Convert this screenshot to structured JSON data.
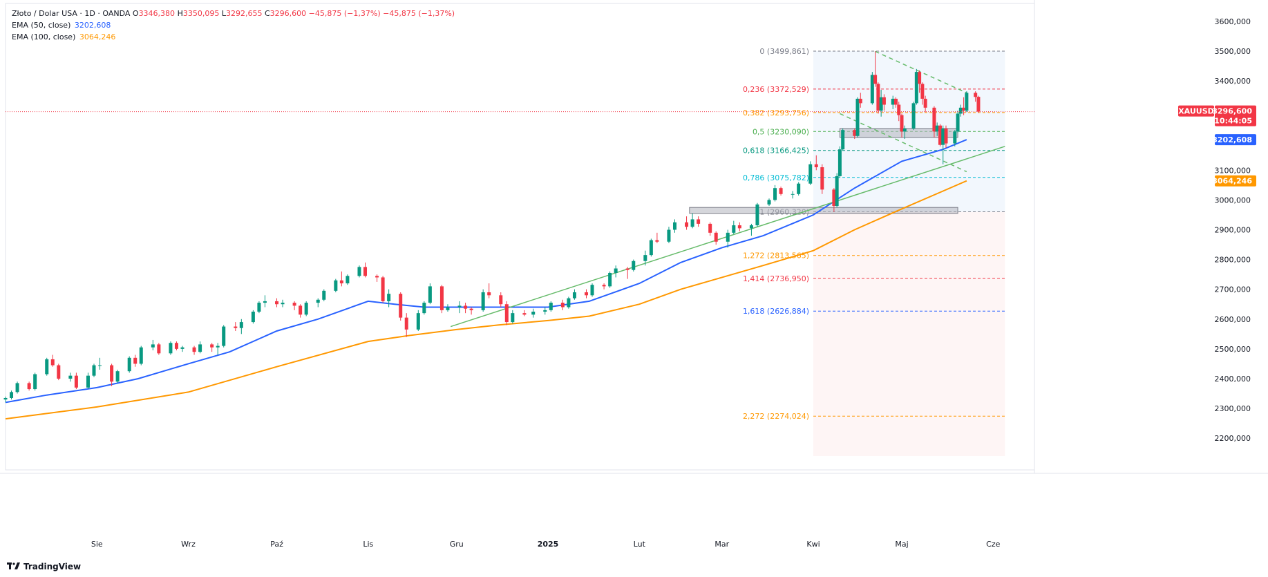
{
  "legend": {
    "symbol": "Złoto / Dolar USA · 1D · OANDA",
    "ohlc": {
      "O": "3346,380",
      "H": "3350,095",
      "L": "3292,655",
      "C": "3296,600"
    },
    "change": "−45,875 (−1,37%)",
    "change2": "−45,875 (−1,37%)",
    "ema50_label": "EMA (50, close)",
    "ema50_value": "3202,608",
    "ema100_label": "EMA (100, close)",
    "ema100_value": "3064,246"
  },
  "brand": "TradingView",
  "colors": {
    "up": "#089981",
    "down": "#f23645",
    "ema50": "#2962ff",
    "ema100": "#ff9800",
    "trend": "#66bb6a",
    "price_line": "#f23645"
  },
  "chart_data": {
    "type": "candlestick",
    "symbol": "XAUUSD",
    "y_axis": {
      "ticks": [
        "3600,000",
        "3500,000",
        "3400,000",
        "3300,000",
        "3200,000",
        "3100,000",
        "3000,000",
        "2900,000",
        "2800,000",
        "2700,000",
        "2600,000",
        "2500,000",
        "2400,000",
        "2300,000",
        "2200,000"
      ],
      "tick_values": [
        3600,
        3500,
        3400,
        3300,
        3200,
        3100,
        3000,
        2900,
        2800,
        2700,
        2600,
        2500,
        2400,
        2300,
        2200
      ],
      "range": [
        2140,
        3660
      ]
    },
    "x_axis": {
      "labels": [
        "Sie",
        "Wrz",
        "Paź",
        "Lis",
        "Gru",
        "2025",
        "Lut",
        "Mar",
        "Kwi",
        "Maj",
        "Cze"
      ],
      "label_dates": [
        "2024-08-01",
        "2024-09-01",
        "2024-10-01",
        "2024-11-01",
        "2024-12-01",
        "2025-01-01",
        "2025-02-01",
        "2025-03-01",
        "2025-04-01",
        "2025-05-01",
        "2025-06-01"
      ],
      "range": [
        "2024-07-01",
        "2025-06-15"
      ]
    },
    "price_badges": [
      {
        "label": "XAUUSD",
        "value": "3296,600",
        "extra": "10:44:05",
        "y": 3296.6,
        "color": "#f23645"
      },
      {
        "label": "",
        "value": "3202,608",
        "extra": "",
        "y": 3202.6,
        "color": "#2962ff"
      },
      {
        "label": "",
        "value": "3064,246",
        "extra": "",
        "y": 3064.2,
        "color": "#ff9800"
      }
    ],
    "fibonacci": {
      "date_start": "2025-04-01",
      "date_end": "2025-06-05",
      "levels": [
        {
          "ratio": "0",
          "label": "0 (3499,861)",
          "y": 3499.861,
          "color": "#787b86"
        },
        {
          "ratio": "0,236",
          "label": "0,236 (3372,529)",
          "y": 3372.529,
          "color": "#f23645"
        },
        {
          "ratio": "0,382",
          "label": "0,382 (3293,756)",
          "y": 3293.756,
          "color": "#ff9800"
        },
        {
          "ratio": "0,5",
          "label": "0,5 (3230,090)",
          "y": 3230.09,
          "color": "#4caf50"
        },
        {
          "ratio": "0,618",
          "label": "0,618 (3166,425)",
          "y": 3166.425,
          "color": "#089981"
        },
        {
          "ratio": "0,786",
          "label": "0,786 (3075,782)",
          "y": 3075.782,
          "color": "#00bcd4"
        },
        {
          "ratio": "1",
          "label": "1 (2960,320)",
          "y": 2960.32,
          "color": "#787b86"
        },
        {
          "ratio": "1,272",
          "label": "1,272 (2813,565)",
          "y": 2813.565,
          "color": "#ff9800"
        },
        {
          "ratio": "1,414",
          "label": "1,414 (2736,950)",
          "y": 2736.95,
          "color": "#f23645"
        },
        {
          "ratio": "1,618",
          "label": "1,618 (2626,884)",
          "y": 2626.884,
          "color": "#2962ff"
        },
        {
          "ratio": "2,272",
          "label": "2,272 (2274,024)",
          "y": 2274.024,
          "color": "#ff9800"
        }
      ]
    },
    "zones": [
      {
        "date_start": "2025-04-10",
        "date_end": "2025-05-20",
        "y_low": 3210,
        "y_high": 3240
      },
      {
        "date_start": "2025-02-18",
        "date_end": "2025-05-20",
        "y_low": 2955,
        "y_high": 2975
      }
    ],
    "trendlines": [
      {
        "type": "solid",
        "color": "#66bb6a",
        "points": [
          [
            "2024-11-29",
            2575
          ],
          [
            "2025-06-05",
            3180
          ]
        ]
      },
      {
        "type": "dashed",
        "color": "#66bb6a",
        "points": [
          [
            "2025-04-22",
            3499
          ],
          [
            "2025-05-23",
            3360
          ]
        ]
      },
      {
        "type": "dashed",
        "color": "#66bb6a",
        "points": [
          [
            "2025-04-10",
            3290
          ],
          [
            "2025-05-23",
            3095
          ]
        ]
      }
    ],
    "ema50": [
      [
        "2024-07-01",
        2320
      ],
      [
        "2024-07-15",
        2345
      ],
      [
        "2024-08-01",
        2370
      ],
      [
        "2024-08-15",
        2400
      ],
      [
        "2024-09-01",
        2450
      ],
      [
        "2024-09-15",
        2490
      ],
      [
        "2024-10-01",
        2560
      ],
      [
        "2024-10-15",
        2600
      ],
      [
        "2024-11-01",
        2660
      ],
      [
        "2024-11-10",
        2650
      ],
      [
        "2024-11-20",
        2640
      ],
      [
        "2024-12-01",
        2640
      ],
      [
        "2024-12-15",
        2640
      ],
      [
        "2025-01-01",
        2640
      ],
      [
        "2025-01-15",
        2660
      ],
      [
        "2025-02-01",
        2720
      ],
      [
        "2025-02-15",
        2790
      ],
      [
        "2025-03-01",
        2840
      ],
      [
        "2025-03-15",
        2880
      ],
      [
        "2025-04-01",
        2950
      ],
      [
        "2025-04-15",
        3040
      ],
      [
        "2025-05-01",
        3130
      ],
      [
        "2025-05-15",
        3170
      ],
      [
        "2025-05-23",
        3202.6
      ]
    ],
    "ema100": [
      [
        "2024-07-01",
        2265
      ],
      [
        "2024-08-01",
        2305
      ],
      [
        "2024-09-01",
        2355
      ],
      [
        "2024-10-01",
        2440
      ],
      [
        "2024-11-01",
        2525
      ],
      [
        "2024-11-15",
        2545
      ],
      [
        "2024-12-01",
        2565
      ],
      [
        "2024-12-15",
        2580
      ],
      [
        "2025-01-01",
        2595
      ],
      [
        "2025-01-15",
        2610
      ],
      [
        "2025-02-01",
        2650
      ],
      [
        "2025-02-15",
        2700
      ],
      [
        "2025-03-01",
        2740
      ],
      [
        "2025-03-15",
        2780
      ],
      [
        "2025-04-01",
        2830
      ],
      [
        "2025-04-15",
        2900
      ],
      [
        "2025-05-01",
        2970
      ],
      [
        "2025-05-15",
        3030
      ],
      [
        "2025-05-23",
        3064.2
      ]
    ],
    "candles": [
      [
        "2024-07-01",
        2330,
        2340,
        2320,
        2335
      ],
      [
        "2024-07-03",
        2335,
        2360,
        2330,
        2355
      ],
      [
        "2024-07-05",
        2355,
        2390,
        2350,
        2385
      ],
      [
        "2024-07-09",
        2385,
        2390,
        2360,
        2365
      ],
      [
        "2024-07-11",
        2365,
        2420,
        2360,
        2415
      ],
      [
        "2024-07-15",
        2415,
        2470,
        2410,
        2465
      ],
      [
        "2024-07-17",
        2465,
        2480,
        2440,
        2445
      ],
      [
        "2024-07-19",
        2445,
        2450,
        2395,
        2400
      ],
      [
        "2024-07-23",
        2400,
        2420,
        2390,
        2410
      ],
      [
        "2024-07-25",
        2410,
        2420,
        2365,
        2370
      ],
      [
        "2024-07-29",
        2370,
        2420,
        2365,
        2410
      ],
      [
        "2024-07-31",
        2410,
        2450,
        2405,
        2445
      ],
      [
        "2024-08-02",
        2445,
        2470,
        2430,
        2445
      ],
      [
        "2024-08-06",
        2445,
        2450,
        2375,
        2390
      ],
      [
        "2024-08-08",
        2390,
        2430,
        2385,
        2425
      ],
      [
        "2024-08-12",
        2425,
        2475,
        2420,
        2470
      ],
      [
        "2024-08-14",
        2470,
        2480,
        2440,
        2450
      ],
      [
        "2024-08-16",
        2450,
        2510,
        2445,
        2505
      ],
      [
        "2024-08-20",
        2505,
        2530,
        2495,
        2515
      ],
      [
        "2024-08-22",
        2515,
        2520,
        2480,
        2485
      ],
      [
        "2024-08-26",
        2485,
        2525,
        2480,
        2520
      ],
      [
        "2024-08-28",
        2520,
        2525,
        2495,
        2500
      ],
      [
        "2024-08-30",
        2500,
        2510,
        2490,
        2505
      ],
      [
        "2024-09-03",
        2505,
        2510,
        2480,
        2490
      ],
      [
        "2024-09-05",
        2490,
        2525,
        2485,
        2515
      ],
      [
        "2024-09-09",
        2515,
        2520,
        2490,
        2505
      ],
      [
        "2024-09-11",
        2505,
        2520,
        2480,
        2510
      ],
      [
        "2024-09-13",
        2510,
        2580,
        2505,
        2575
      ],
      [
        "2024-09-17",
        2575,
        2590,
        2560,
        2570
      ],
      [
        "2024-09-19",
        2570,
        2600,
        2550,
        2590
      ],
      [
        "2024-09-23",
        2590,
        2630,
        2585,
        2625
      ],
      [
        "2024-09-25",
        2625,
        2660,
        2620,
        2655
      ],
      [
        "2024-09-27",
        2655,
        2680,
        2640,
        2660
      ],
      [
        "2024-10-01",
        2660,
        2670,
        2640,
        2650
      ],
      [
        "2024-10-03",
        2650,
        2665,
        2640,
        2655
      ],
      [
        "2024-10-07",
        2655,
        2660,
        2630,
        2645
      ],
      [
        "2024-10-09",
        2645,
        2650,
        2605,
        2615
      ],
      [
        "2024-10-11",
        2615,
        2660,
        2610,
        2655
      ],
      [
        "2024-10-15",
        2655,
        2670,
        2640,
        2665
      ],
      [
        "2024-10-17",
        2665,
        2700,
        2660,
        2695
      ],
      [
        "2024-10-21",
        2695,
        2735,
        2690,
        2730
      ],
      [
        "2024-10-23",
        2730,
        2760,
        2710,
        2720
      ],
      [
        "2024-10-25",
        2720,
        2750,
        2715,
        2745
      ],
      [
        "2024-10-29",
        2745,
        2780,
        2740,
        2775
      ],
      [
        "2024-10-31",
        2775,
        2790,
        2740,
        2745
      ],
      [
        "2024-11-04",
        2745,
        2750,
        2725,
        2740
      ],
      [
        "2024-11-06",
        2740,
        2745,
        2655,
        2660
      ],
      [
        "2024-11-08",
        2660,
        2700,
        2640,
        2685
      ],
      [
        "2024-11-12",
        2685,
        2690,
        2595,
        2605
      ],
      [
        "2024-11-14",
        2605,
        2620,
        2540,
        2565
      ],
      [
        "2024-11-18",
        2565,
        2630,
        2560,
        2620
      ],
      [
        "2024-11-20",
        2620,
        2660,
        2615,
        2655
      ],
      [
        "2024-11-22",
        2655,
        2720,
        2650,
        2710
      ],
      [
        "2024-11-26",
        2710,
        2715,
        2620,
        2630
      ],
      [
        "2024-11-28",
        2630,
        2650,
        2625,
        2640
      ],
      [
        "2024-12-02",
        2640,
        2660,
        2620,
        2645
      ],
      [
        "2024-12-04",
        2645,
        2655,
        2620,
        2635
      ],
      [
        "2024-12-06",
        2635,
        2640,
        2615,
        2630
      ],
      [
        "2024-12-10",
        2630,
        2700,
        2625,
        2690
      ],
      [
        "2024-12-12",
        2690,
        2720,
        2670,
        2680
      ],
      [
        "2024-12-16",
        2680,
        2690,
        2640,
        2650
      ],
      [
        "2024-12-18",
        2650,
        2660,
        2580,
        2590
      ],
      [
        "2024-12-20",
        2590,
        2630,
        2585,
        2620
      ],
      [
        "2024-12-24",
        2620,
        2630,
        2610,
        2615
      ],
      [
        "2024-12-27",
        2615,
        2635,
        2605,
        2625
      ],
      [
        "2024-12-31",
        2625,
        2640,
        2615,
        2630
      ],
      [
        "2025-01-02",
        2630,
        2660,
        2625,
        2655
      ],
      [
        "2025-01-06",
        2655,
        2665,
        2630,
        2640
      ],
      [
        "2025-01-08",
        2640,
        2675,
        2635,
        2670
      ],
      [
        "2025-01-10",
        2670,
        2700,
        2665,
        2690
      ],
      [
        "2025-01-14",
        2690,
        2700,
        2670,
        2680
      ],
      [
        "2025-01-16",
        2680,
        2720,
        2675,
        2715
      ],
      [
        "2025-01-20",
        2715,
        2720,
        2700,
        2710
      ],
      [
        "2025-01-22",
        2710,
        2760,
        2705,
        2755
      ],
      [
        "2025-01-24",
        2755,
        2780,
        2740,
        2770
      ],
      [
        "2025-01-28",
        2770,
        2775,
        2735,
        2765
      ],
      [
        "2025-01-30",
        2765,
        2800,
        2760,
        2795
      ],
      [
        "2025-02-03",
        2795,
        2830,
        2780,
        2815
      ],
      [
        "2025-02-05",
        2815,
        2870,
        2810,
        2865
      ],
      [
        "2025-02-07",
        2865,
        2890,
        2855,
        2860
      ],
      [
        "2025-02-11",
        2860,
        2910,
        2855,
        2900
      ],
      [
        "2025-02-13",
        2900,
        2935,
        2890,
        2925
      ],
      [
        "2025-02-17",
        2925,
        2945,
        2900,
        2910
      ],
      [
        "2025-02-19",
        2910,
        2955,
        2905,
        2935
      ],
      [
        "2025-02-21",
        2935,
        2945,
        2910,
        2920
      ],
      [
        "2025-02-25",
        2920,
        2925,
        2880,
        2890
      ],
      [
        "2025-02-27",
        2890,
        2895,
        2850,
        2860
      ],
      [
        "2025-03-03",
        2860,
        2900,
        2840,
        2890
      ],
      [
        "2025-03-05",
        2890,
        2930,
        2885,
        2915
      ],
      [
        "2025-03-07",
        2915,
        2925,
        2895,
        2905
      ],
      [
        "2025-03-11",
        2905,
        2920,
        2880,
        2915
      ],
      [
        "2025-03-13",
        2915,
        2990,
        2910,
        2985
      ],
      [
        "2025-03-17",
        2985,
        3005,
        2980,
        3000
      ],
      [
        "2025-03-19",
        3000,
        3050,
        2995,
        3040
      ],
      [
        "2025-03-21",
        3040,
        3045,
        3015,
        3020
      ],
      [
        "2025-03-25",
        3020,
        3030,
        3005,
        3020
      ],
      [
        "2025-03-27",
        3020,
        3060,
        3015,
        3055
      ],
      [
        "2025-03-31",
        3055,
        3130,
        3050,
        3120
      ],
      [
        "2025-04-02",
        3120,
        3150,
        3100,
        3110
      ],
      [
        "2025-04-04",
        3110,
        3120,
        3020,
        3035
      ],
      [
        "2025-04-08",
        3035,
        3040,
        2960,
        2980
      ],
      [
        "2025-04-09",
        2980,
        3090,
        2975,
        3080
      ],
      [
        "2025-04-10",
        3080,
        3180,
        3075,
        3170
      ],
      [
        "2025-04-11",
        3170,
        3240,
        3165,
        3235
      ],
      [
        "2025-04-15",
        3235,
        3240,
        3205,
        3215
      ],
      [
        "2025-04-16",
        3215,
        3345,
        3210,
        3340
      ],
      [
        "2025-04-17",
        3340,
        3360,
        3310,
        3325
      ],
      [
        "2025-04-21",
        3325,
        3430,
        3320,
        3420
      ],
      [
        "2025-04-22",
        3420,
        3499,
        3380,
        3390
      ],
      [
        "2025-04-23",
        3390,
        3395,
        3290,
        3300
      ],
      [
        "2025-04-24",
        3300,
        3370,
        3280,
        3345
      ],
      [
        "2025-04-25",
        3345,
        3355,
        3300,
        3320
      ],
      [
        "2025-04-28",
        3320,
        3350,
        3305,
        3340
      ],
      [
        "2025-04-29",
        3340,
        3345,
        3310,
        3320
      ],
      [
        "2025-04-30",
        3320,
        3330,
        3265,
        3285
      ],
      [
        "2025-05-01",
        3285,
        3290,
        3210,
        3230
      ],
      [
        "2025-05-02",
        3230,
        3250,
        3205,
        3240
      ],
      [
        "2025-05-05",
        3240,
        3330,
        3235,
        3325
      ],
      [
        "2025-05-06",
        3325,
        3440,
        3320,
        3430
      ],
      [
        "2025-05-07",
        3430,
        3435,
        3360,
        3390
      ],
      [
        "2025-05-08",
        3390,
        3395,
        3320,
        3340
      ],
      [
        "2025-05-09",
        3340,
        3350,
        3295,
        3310
      ],
      [
        "2025-05-12",
        3310,
        3315,
        3210,
        3230
      ],
      [
        "2025-05-13",
        3230,
        3260,
        3215,
        3250
      ],
      [
        "2025-05-14",
        3250,
        3255,
        3180,
        3185
      ],
      [
        "2025-05-15",
        3185,
        3250,
        3120,
        3240
      ],
      [
        "2025-05-16",
        3240,
        3250,
        3175,
        3190
      ],
      [
        "2025-05-19",
        3190,
        3235,
        3180,
        3230
      ],
      [
        "2025-05-20",
        3230,
        3300,
        3225,
        3290
      ],
      [
        "2025-05-21",
        3290,
        3320,
        3280,
        3310
      ],
      [
        "2025-05-22",
        3310,
        3345,
        3285,
        3300
      ],
      [
        "2025-05-23",
        3300,
        3365,
        3295,
        3360
      ],
      [
        "2025-05-26",
        3360,
        3365,
        3330,
        3346
      ],
      [
        "2025-05-27",
        3346.38,
        3350.095,
        3292.655,
        3296.6
      ]
    ]
  }
}
